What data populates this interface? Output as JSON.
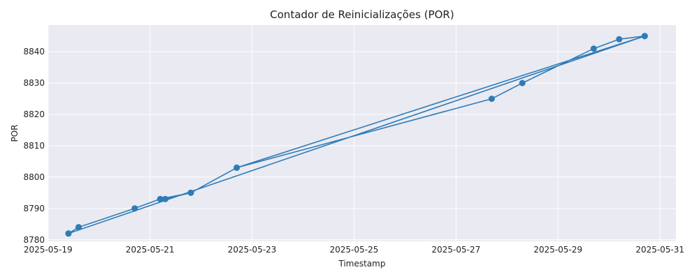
{
  "chart_data": {
    "type": "line",
    "title": "Contador de Reinicializações (POR)",
    "xlabel": "Timestamp",
    "ylabel": "POR",
    "x_ticks": [
      "2025-05-19",
      "2025-05-21",
      "2025-05-23",
      "2025-05-25",
      "2025-05-27",
      "2025-05-29",
      "2025-05-31"
    ],
    "y_ticks": [
      8780,
      8790,
      8800,
      8810,
      8820,
      8830,
      8840
    ],
    "xlim": [
      "2025-05-19T00:05",
      "2025-05-31T07:30"
    ],
    "ylim": [
      8779.5,
      8848.5
    ],
    "grid": true,
    "marker": "circle",
    "colors": {
      "plot_bg": "#eaeaf2",
      "grid": "#ffffff",
      "line": "#2d7cb8"
    },
    "series": [
      {
        "x": [
          "2025-05-19T09:36",
          "2025-05-19T14:24",
          "2025-05-20T16:48",
          "2025-05-21T04:48",
          "2025-05-21T07:12",
          "2025-05-21T19:12",
          "2025-05-22T16:48",
          "2025-05-30T16:48",
          "2025-05-30T04:48",
          "2025-05-29T16:48",
          "2025-05-28T07:12",
          "2025-05-27T16:48",
          "2025-05-22T16:48",
          "2025-05-21T19:12",
          "2025-05-21T04:48",
          "2025-05-20T16:48",
          "2025-05-19T14:24",
          "2025-05-19T09:36",
          "2025-05-30T16:48"
        ],
        "y": [
          8782,
          8784,
          8790,
          8793,
          8793,
          8795,
          8803,
          8845,
          8844,
          8841,
          8830,
          8825,
          8803,
          8795,
          8793,
          8790,
          8784,
          8782,
          8845
        ]
      }
    ]
  }
}
